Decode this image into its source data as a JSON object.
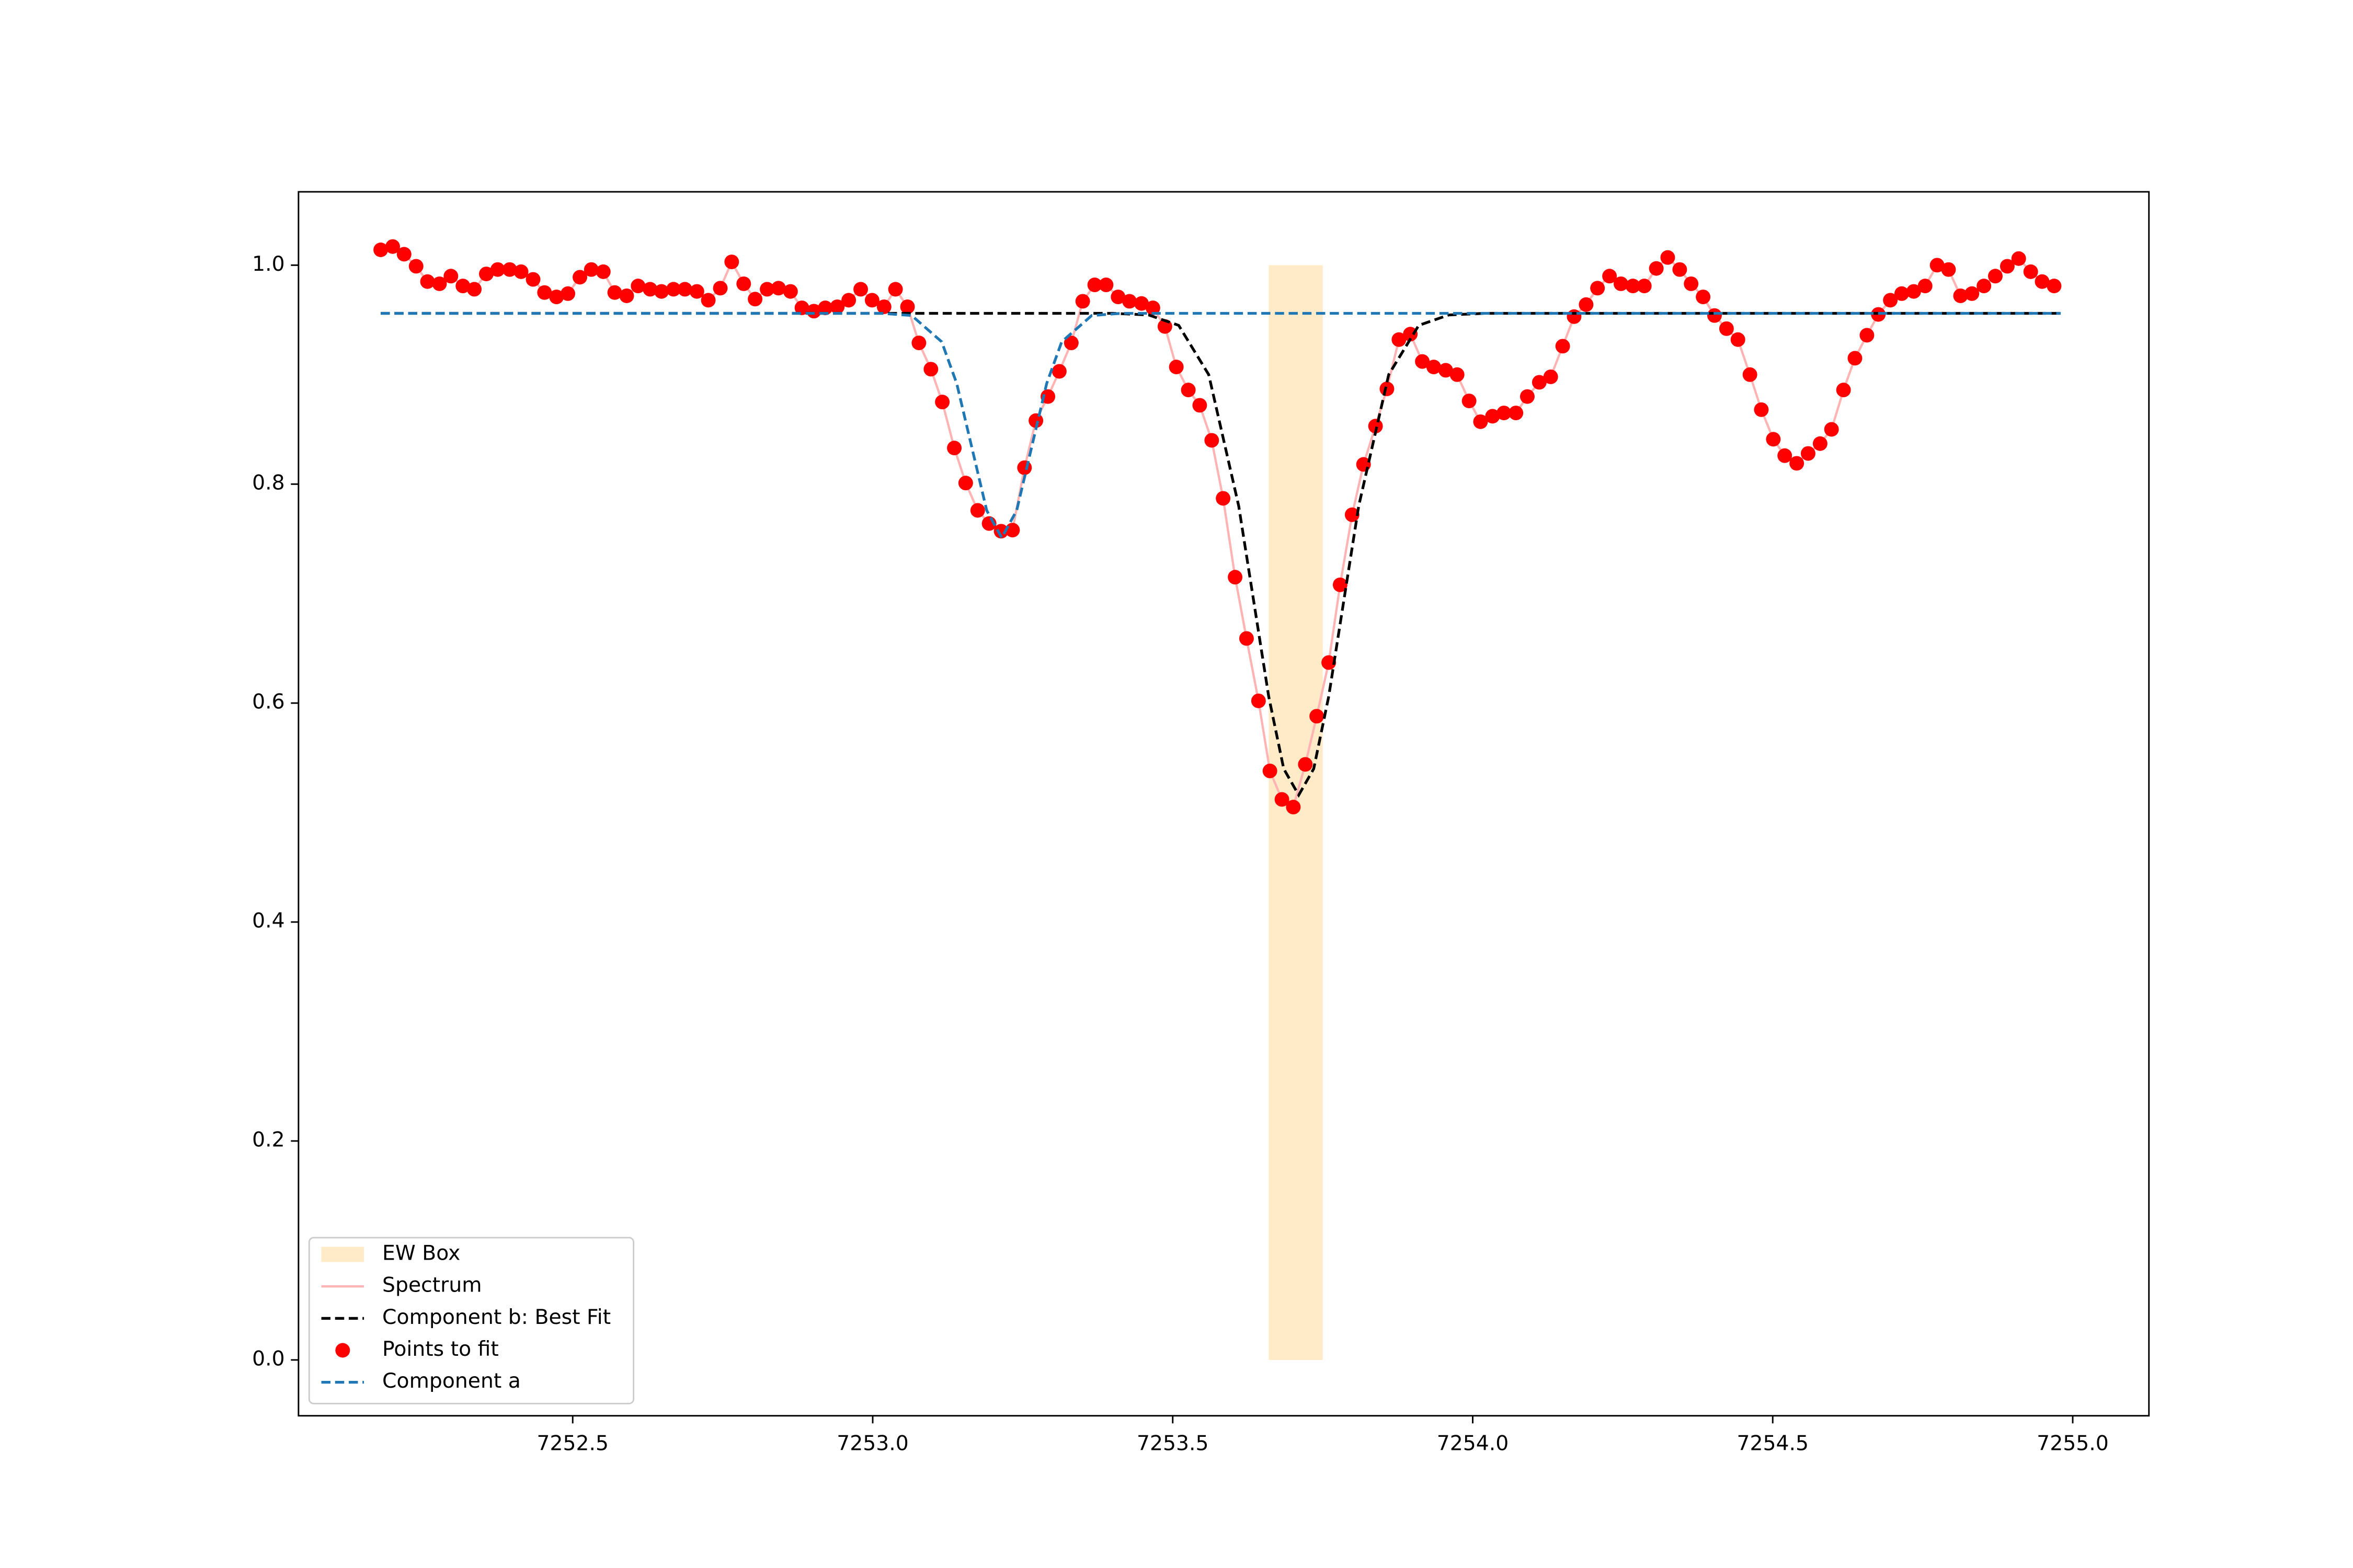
{
  "chart_data": {
    "type": "line",
    "xlim": [
      7252.043,
      7255.127
    ],
    "ylim": [
      -0.051,
      1.067
    ],
    "xticks": [
      7252.5,
      {
        "value": 7253,
        "label": "7253.0"
      },
      7253.5,
      {
        "value": 7254,
        "label": "7254.0"
      },
      7254.5,
      {
        "value": 7255,
        "label": "7255.0"
      }
    ],
    "yticks": [
      {
        "value": 0,
        "label": "0.0"
      },
      0.2,
      0.4,
      0.6,
      0.8,
      {
        "value": 1,
        "label": "1.0"
      }
    ],
    "legend": "lower left",
    "series": [
      {
        "name": "EW Box",
        "kind": "span",
        "color": "#ffebc8",
        "x": [
          7253.66,
          7253.75
        ],
        "values": [
          0,
          1.0
        ]
      },
      {
        "name": "Spectrum",
        "kind": "line",
        "color": "#ffb3b3",
        "x": [
          7252.18,
          7252.2,
          7252.219,
          7252.239,
          7252.258,
          7252.278,
          7252.297,
          7252.317,
          7252.336,
          7252.356,
          7252.375,
          7252.395,
          7252.414,
          7252.434,
          7252.453,
          7252.473,
          7252.492,
          7252.512,
          7252.531,
          7252.551,
          7252.57,
          7252.59,
          7252.609,
          7252.629,
          7252.648,
          7252.668,
          7252.687,
          7252.707,
          7252.726,
          7252.746,
          7252.765,
          7252.785,
          7252.804,
          7252.824,
          7252.843,
          7252.863,
          7252.882,
          7252.902,
          7252.921,
          7252.941,
          7252.96,
          7252.98,
          7252.999,
          7253.019,
          7253.038,
          7253.058,
          7253.077,
          7253.097,
          7253.116,
          7253.136,
          7253.155,
          7253.175,
          7253.194,
          7253.214,
          7253.233,
          7253.253,
          7253.272,
          7253.292,
          7253.311,
          7253.331,
          7253.35,
          7253.37,
          7253.389,
          7253.409,
          7253.428,
          7253.448,
          7253.467,
          7253.487,
          7253.506,
          7253.526,
          7253.545,
          7253.565,
          7253.584,
          7253.604,
          7253.623,
          7253.643,
          7253.662,
          7253.682,
          7253.701,
          7253.721,
          7253.74,
          7253.76,
          7253.779,
          7253.799,
          7253.818,
          7253.838,
          7253.857,
          7253.877,
          7253.896,
          7253.916,
          7253.935,
          7253.955,
          7253.974,
          7253.994,
          7254.013,
          7254.033,
          7254.052,
          7254.072,
          7254.091,
          7254.111,
          7254.13,
          7254.15,
          7254.169,
          7254.189,
          7254.208,
          7254.228,
          7254.247,
          7254.267,
          7254.286,
          7254.306,
          7254.325,
          7254.345,
          7254.364,
          7254.384,
          7254.403,
          7254.423,
          7254.442,
          7254.462,
          7254.481,
          7254.501,
          7254.52,
          7254.54,
          7254.559,
          7254.579,
          7254.598,
          7254.618,
          7254.637,
          7254.657,
          7254.676,
          7254.696,
          7254.715,
          7254.735,
          7254.754,
          7254.774,
          7254.793,
          7254.813,
          7254.832,
          7254.852,
          7254.871,
          7254.891,
          7254.91,
          7254.93,
          7254.949,
          7254.969
        ],
        "values": [
          1.014,
          1.017,
          1.01,
          0.999,
          0.985,
          0.983,
          0.99,
          0.981,
          0.978,
          0.992,
          0.996,
          0.996,
          0.994,
          0.987,
          0.975,
          0.971,
          0.974,
          0.989,
          0.996,
          0.994,
          0.975,
          0.972,
          0.981,
          0.978,
          0.976,
          0.978,
          0.978,
          0.976,
          0.968,
          0.979,
          1.003,
          0.983,
          0.969,
          0.978,
          0.979,
          0.976,
          0.961,
          0.958,
          0.961,
          0.962,
          0.968,
          0.978,
          0.968,
          0.962,
          0.978,
          0.962,
          0.929,
          0.905,
          0.875,
          0.833,
          0.801,
          0.776,
          0.764,
          0.757,
          0.758,
          0.815,
          0.858,
          0.88,
          0.903,
          0.929,
          0.967,
          0.982,
          0.982,
          0.971,
          0.967,
          0.965,
          0.961,
          0.944,
          0.907,
          0.886,
          0.872,
          0.84,
          0.787,
          0.715,
          0.659,
          0.602,
          0.538,
          0.512,
          0.505,
          0.544,
          0.588,
          0.637,
          0.708,
          0.772,
          0.818,
          0.853,
          0.887,
          0.932,
          0.937,
          0.912,
          0.907,
          0.904,
          0.9,
          0.876,
          0.857,
          0.862,
          0.865,
          0.865,
          0.88,
          0.893,
          0.898,
          0.926,
          0.953,
          0.964,
          0.979,
          0.99,
          0.983,
          0.981,
          0.981,
          0.997,
          1.007,
          0.996,
          0.983,
          0.971,
          0.954,
          0.942,
          0.932,
          0.9,
          0.868,
          0.841,
          0.826,
          0.819,
          0.828,
          0.837,
          0.85,
          0.886,
          0.915,
          0.936,
          0.955,
          0.968,
          0.974,
          0.976,
          0.981,
          1.0,
          0.996,
          0.972,
          0.974,
          0.981,
          0.99,
          0.999,
          1.006,
          0.994,
          0.985,
          0.981
        ]
      },
      {
        "name": "Component b: Best Fit",
        "kind": "dashed",
        "color": "#000000",
        "x": [
          7252.18,
          7253.4,
          7253.46,
          7253.51,
          7253.56,
          7253.61,
          7253.66,
          7253.685,
          7253.71,
          7253.735,
          7253.76,
          7253.81,
          7253.86,
          7253.91,
          7253.96,
          7254.02,
          7254.98
        ],
        "values": [
          0.956,
          0.956,
          0.9545,
          0.945,
          0.9,
          0.78,
          0.606,
          0.54,
          0.516,
          0.54,
          0.606,
          0.78,
          0.9,
          0.945,
          0.9545,
          0.956,
          0.956
        ]
      },
      {
        "name": "Points to fit",
        "kind": "scatter",
        "color": "#ff0000",
        "x": [
          7252.18,
          7252.2,
          7252.219,
          7252.239,
          7252.258,
          7252.278,
          7252.297,
          7252.317,
          7252.336,
          7252.356,
          7252.375,
          7252.395,
          7252.414,
          7252.434,
          7252.453,
          7252.473,
          7252.492,
          7252.512,
          7252.531,
          7252.551,
          7252.57,
          7252.59,
          7252.609,
          7252.629,
          7252.648,
          7252.668,
          7252.687,
          7252.707,
          7252.726,
          7252.746,
          7252.765,
          7252.785,
          7252.804,
          7252.824,
          7252.843,
          7252.863,
          7252.882,
          7252.902,
          7252.921,
          7252.941,
          7252.96,
          7252.98,
          7252.999,
          7253.019,
          7253.038,
          7253.058,
          7253.077,
          7253.097,
          7253.116,
          7253.136,
          7253.155,
          7253.175,
          7253.194,
          7253.214,
          7253.233,
          7253.253,
          7253.272,
          7253.292,
          7253.311,
          7253.331,
          7253.35,
          7253.37,
          7253.389,
          7253.409,
          7253.428,
          7253.448,
          7253.467,
          7253.487,
          7253.506,
          7253.526,
          7253.545,
          7253.565,
          7253.584,
          7253.604,
          7253.623,
          7253.643,
          7253.662,
          7253.682,
          7253.701,
          7253.721,
          7253.74,
          7253.76,
          7253.779,
          7253.799,
          7253.818,
          7253.838,
          7253.857,
          7253.877,
          7253.896,
          7253.916,
          7253.935,
          7253.955,
          7253.974,
          7253.994,
          7254.013,
          7254.033,
          7254.052,
          7254.072,
          7254.091,
          7254.111,
          7254.13,
          7254.15,
          7254.169,
          7254.189,
          7254.208,
          7254.228,
          7254.247,
          7254.267,
          7254.286,
          7254.306,
          7254.325,
          7254.345,
          7254.364,
          7254.384,
          7254.403,
          7254.423,
          7254.442,
          7254.462,
          7254.481,
          7254.501,
          7254.52,
          7254.54,
          7254.559,
          7254.579,
          7254.598,
          7254.618,
          7254.637,
          7254.657,
          7254.676,
          7254.696,
          7254.715,
          7254.735,
          7254.754,
          7254.774,
          7254.793,
          7254.813,
          7254.832,
          7254.852,
          7254.871,
          7254.891,
          7254.91,
          7254.93,
          7254.949,
          7254.969
        ],
        "values": [
          1.014,
          1.017,
          1.01,
          0.999,
          0.985,
          0.983,
          0.99,
          0.981,
          0.978,
          0.992,
          0.996,
          0.996,
          0.994,
          0.987,
          0.975,
          0.971,
          0.974,
          0.989,
          0.996,
          0.994,
          0.975,
          0.972,
          0.981,
          0.978,
          0.976,
          0.978,
          0.978,
          0.976,
          0.968,
          0.979,
          1.003,
          0.983,
          0.969,
          0.978,
          0.979,
          0.976,
          0.961,
          0.958,
          0.961,
          0.962,
          0.968,
          0.978,
          0.968,
          0.962,
          0.978,
          0.962,
          0.929,
          0.905,
          0.875,
          0.833,
          0.801,
          0.776,
          0.764,
          0.757,
          0.758,
          0.815,
          0.858,
          0.88,
          0.903,
          0.929,
          0.967,
          0.982,
          0.982,
          0.971,
          0.967,
          0.965,
          0.961,
          0.944,
          0.907,
          0.886,
          0.872,
          0.84,
          0.787,
          0.715,
          0.659,
          0.602,
          0.538,
          0.512,
          0.505,
          0.544,
          0.588,
          0.637,
          0.708,
          0.772,
          0.818,
          0.853,
          0.887,
          0.932,
          0.937,
          0.912,
          0.907,
          0.904,
          0.9,
          0.876,
          0.857,
          0.862,
          0.865,
          0.865,
          0.88,
          0.893,
          0.898,
          0.926,
          0.953,
          0.964,
          0.979,
          0.99,
          0.983,
          0.981,
          0.981,
          0.997,
          1.007,
          0.996,
          0.983,
          0.971,
          0.954,
          0.942,
          0.932,
          0.9,
          0.868,
          0.841,
          0.826,
          0.819,
          0.828,
          0.837,
          0.85,
          0.886,
          0.915,
          0.936,
          0.955,
          0.968,
          0.974,
          0.976,
          0.981,
          1.0,
          0.996,
          0.972,
          0.974,
          0.981,
          0.99,
          0.999,
          1.006,
          0.994,
          0.985,
          0.981
        ]
      },
      {
        "name": "Component a",
        "kind": "dashed",
        "color": "#1f77b4",
        "x": [
          7252.18,
          7253.015,
          7253.065,
          7253.115,
          7253.14,
          7253.165,
          7253.19,
          7253.215,
          7253.24,
          7253.265,
          7253.29,
          7253.315,
          7253.365,
          7253.415,
          7254.98
        ],
        "values": [
          0.956,
          0.956,
          0.954,
          0.93,
          0.892,
          0.834,
          0.776,
          0.751,
          0.776,
          0.834,
          0.892,
          0.93,
          0.954,
          0.956,
          0.956
        ]
      }
    ]
  }
}
